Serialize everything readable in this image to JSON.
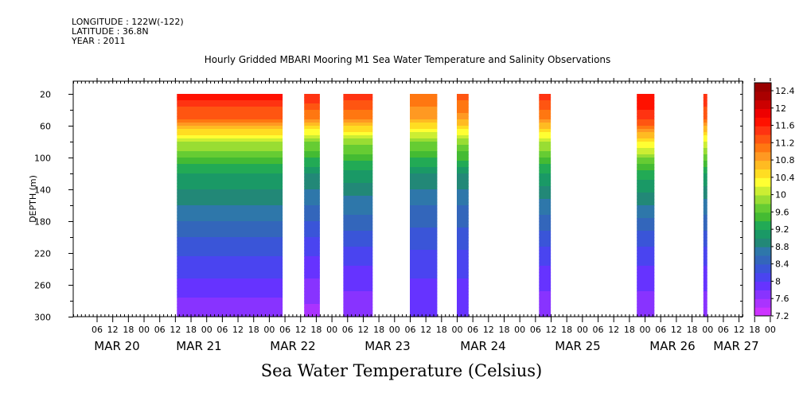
{
  "meta": {
    "longitude": "LONGITUDE : 122W(-122)",
    "latitude": "LATITUDE : 36.8N",
    "year": "YEAR : 2011"
  },
  "chart_data": {
    "type": "heatmap",
    "title": "Hourly Gridded MBARI Mooring M1 Sea Water Temperature and Salinity Observations",
    "xlabel": "Sea Water Temperature (Celsius)",
    "ylabel": "DEPTH (m)",
    "x_hour_ticks": [
      "06",
      "12",
      "18",
      "00",
      "06",
      "12",
      "18",
      "00",
      "06",
      "12",
      "18",
      "00",
      "06",
      "12",
      "18",
      "00",
      "06",
      "12",
      "18",
      "00",
      "06",
      "12",
      "18",
      "00",
      "06",
      "12",
      "18",
      "00",
      "06",
      "12",
      "18",
      "00",
      "06",
      "12",
      "18",
      "00",
      "06",
      "12",
      "18",
      "00",
      "06",
      "12",
      "18",
      "00"
    ],
    "x_date_labels": [
      "MAR 20",
      "MAR 21",
      "MAR 22",
      "MAR 23",
      "MAR 24",
      "MAR 25",
      "MAR 26",
      "MAR 27"
    ],
    "xlim_hours": [
      0,
      171
    ],
    "y_ticks": [
      20,
      60,
      100,
      140,
      180,
      220,
      260,
      300
    ],
    "ylim": [
      300,
      4
    ],
    "colorbar": {
      "labels": [
        "12.4",
        "12",
        "11.6",
        "11.2",
        "10.8",
        "10.4",
        "10",
        "9.6",
        "9.2",
        "8.8",
        "8.4",
        "8",
        "7.6",
        "7.2"
      ],
      "levels": [
        7.2,
        7.4,
        7.6,
        7.8,
        8.0,
        8.2,
        8.4,
        8.6,
        8.8,
        9.0,
        9.2,
        9.4,
        9.6,
        9.8,
        10.0,
        10.2,
        10.4,
        10.6,
        10.8,
        11.0,
        11.2,
        11.4,
        11.6,
        11.8,
        12.0,
        12.2,
        12.4,
        12.6
      ],
      "colors": [
        "#cc33ff",
        "#aa33ff",
        "#8833ff",
        "#6633ff",
        "#4a44f0",
        "#3a55d8",
        "#3366bb",
        "#2e77aa",
        "#228877",
        "#1a9966",
        "#22aa55",
        "#44bb33",
        "#66cc33",
        "#99dd33",
        "#ccee33",
        "#ffff33",
        "#ffdd22",
        "#ffbb22",
        "#ff9922",
        "#ff7711",
        "#ff5511",
        "#ff3311",
        "#ff1100",
        "#ee0000",
        "#cc0000",
        "#aa0000",
        "#990000"
      ]
    },
    "data_segments_hours": [
      {
        "start": 26.5,
        "end": 53.5,
        "profile": [
          11.7,
          11.2,
          10.0,
          9.2,
          8.8,
          8.4,
          8.0,
          7.6
        ]
      },
      {
        "start": 59,
        "end": 63,
        "profile": [
          11.6,
          11.0,
          9.8,
          9.0,
          8.6,
          8.2,
          7.8,
          7.5
        ]
      },
      {
        "start": 69,
        "end": 76.5,
        "profile": [
          11.5,
          11.0,
          9.9,
          9.1,
          8.7,
          8.3,
          7.9,
          7.6
        ]
      },
      {
        "start": 86,
        "end": 93,
        "profile": [
          11.2,
          10.8,
          9.8,
          9.0,
          8.6,
          8.3,
          8.0,
          7.8
        ]
      },
      {
        "start": 98,
        "end": 101,
        "profile": [
          11.3,
          10.9,
          9.9,
          9.0,
          8.6,
          8.3,
          8.0,
          7.8
        ]
      },
      {
        "start": 119,
        "end": 122,
        "profile": [
          11.5,
          11.0,
          10.0,
          9.2,
          8.7,
          8.3,
          7.9,
          7.6
        ]
      },
      {
        "start": 144,
        "end": 148.5,
        "profile": [
          11.8,
          11.5,
          10.4,
          9.3,
          8.8,
          8.3,
          7.9,
          7.6
        ]
      },
      {
        "start": 161,
        "end": 162,
        "profile": [
          11.6,
          11.2,
          10.2,
          9.2,
          8.7,
          8.3,
          7.9,
          7.6
        ]
      }
    ],
    "profile_depths": [
      20,
      50,
      80,
      120,
      160,
      200,
      250,
      300
    ]
  }
}
